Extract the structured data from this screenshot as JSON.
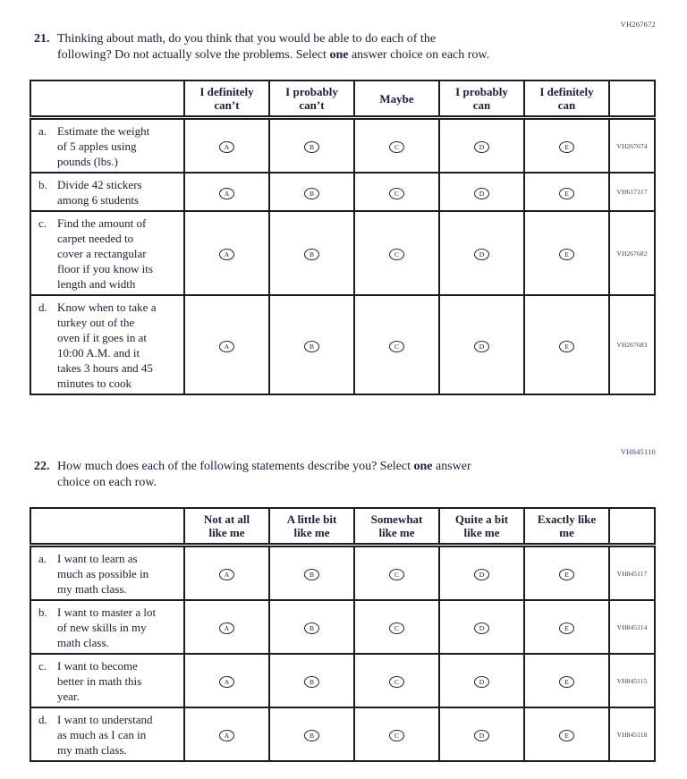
{
  "colors": {
    "ink": "#20203a",
    "border": "#1b1b26",
    "code_text": "#3d3d63",
    "background": "#ffffff"
  },
  "choices": [
    "A",
    "B",
    "C",
    "D",
    "E"
  ],
  "q21": {
    "number": "21.",
    "page_code": "VH267672",
    "text_before": "Thinking about math, do you think that you would be able to do each of the\nfollowing? Do not actually solve the problems. Select ",
    "text_bold": "one",
    "text_after": " answer choice on each row.",
    "columns": [
      "I definitely\ncan’t",
      "I probably\ncan’t",
      "Maybe",
      "I probably\ncan",
      "I definitely\ncan"
    ],
    "rows": [
      {
        "letter": "a.",
        "stem": "Estimate the weight\nof 5 apples using\npounds (lbs.)",
        "code": "VH267674"
      },
      {
        "letter": "b.",
        "stem": "Divide 42 stickers\namong 6 students",
        "code": "VH617317"
      },
      {
        "letter": "c.",
        "stem": "Find the amount of\ncarpet needed to\ncover a rectangular\nfloor if you know its\nlength and width",
        "code": "VH267682"
      },
      {
        "letter": "d.",
        "stem": "Know when to take a\nturkey out of the\noven if it goes in at\n10:00 A.M. and it\ntakes 3 hours and 45\nminutes to cook",
        "code": "VH267683"
      }
    ]
  },
  "q22": {
    "number": "22.",
    "page_code": "VH845110",
    "text_before": "How much does each of the following statements describe you? Select ",
    "text_bold": "one",
    "text_after": " answer\nchoice on each row.",
    "columns": [
      "Not at all\nlike me",
      "A little bit\nlike me",
      "Somewhat\nlike me",
      "Quite a bit\nlike me",
      "Exactly like\nme"
    ],
    "rows": [
      {
        "letter": "a.",
        "stem": "I want to learn as\nmuch as possible in\nmy math class.",
        "code": "VH845117"
      },
      {
        "letter": "b.",
        "stem": "I want to master a lot\nof new skills in my\nmath class.",
        "code": "VH845114"
      },
      {
        "letter": "c.",
        "stem": "I want to become\nbetter in math this\nyear.",
        "code": "VH845115"
      },
      {
        "letter": "d.",
        "stem": "I want to understand\nas much as I can in\nmy math class.",
        "code": "VH845118"
      }
    ]
  }
}
